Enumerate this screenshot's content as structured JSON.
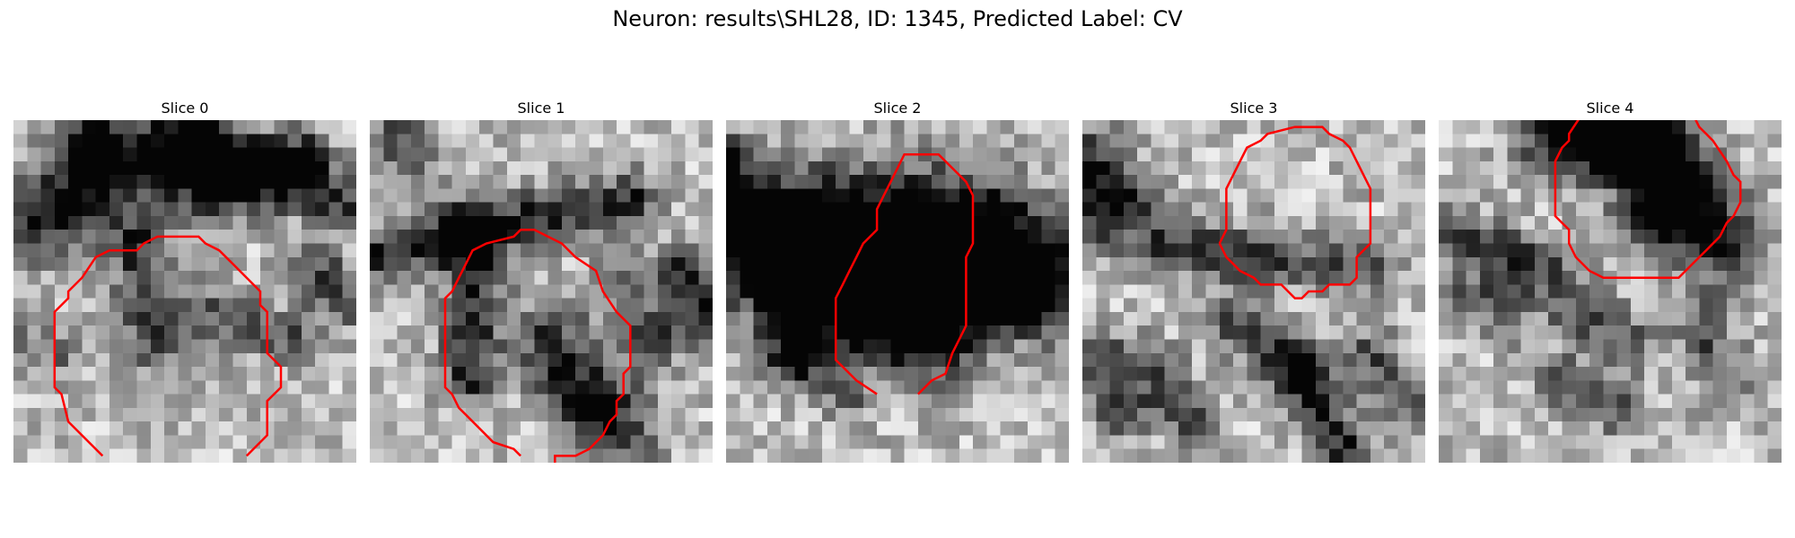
{
  "figure": {
    "title": "Neuron: results\\SHL28, ID: 1345, Predicted Label: CV"
  },
  "contour_color": "#ff0000",
  "slices": [
    {
      "title": "Slice 0"
    },
    {
      "title": "Slice 1"
    },
    {
      "title": "Slice 2"
    },
    {
      "title": "Slice 3"
    },
    {
      "title": "Slice 4"
    }
  ]
}
